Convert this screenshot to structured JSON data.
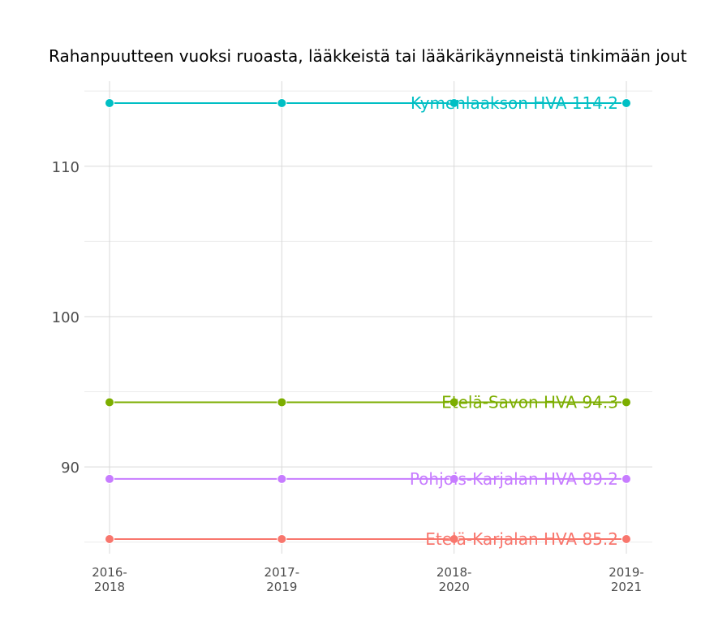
{
  "chart_data": {
    "type": "line",
    "title": "Rahanpuutteen vuoksi ruoasta, lääkkeistä tai lääkärikäynneistä tinkimään jout",
    "xlabel": "",
    "ylabel": "",
    "categories": [
      [
        "2016-",
        "2018"
      ],
      [
        "2017-",
        "2019"
      ],
      [
        "2018-",
        "2020"
      ],
      [
        "2019-",
        "2021"
      ]
    ],
    "y_ticks": [
      90,
      100,
      110
    ],
    "ylim": [
      85.2,
      114.2
    ],
    "grid": true,
    "legend": "none",
    "series": [
      {
        "name": "Kymenlaakson HVA",
        "values": [
          114.2,
          114.2,
          114.2,
          114.2
        ],
        "end_label": "Kymenlaakson HVA 114.2",
        "color": "#00BFC4"
      },
      {
        "name": "Etelä-Savon HVA",
        "values": [
          94.3,
          94.3,
          94.3,
          94.3
        ],
        "end_label": "Etelä-Savon HVA 94.3",
        "color": "#7CAE00"
      },
      {
        "name": "Pohjois-Karjalan HVA",
        "values": [
          89.2,
          89.2,
          89.2,
          89.2
        ],
        "end_label": "Pohjois-Karjalan HVA 89.2",
        "color": "#C77CFF"
      },
      {
        "name": "Etelä-Karjalan HVA",
        "values": [
          85.2,
          85.2,
          85.2,
          85.2
        ],
        "end_label": "Etelä-Karjalan HVA 85.2",
        "color": "#F8766D"
      }
    ]
  }
}
